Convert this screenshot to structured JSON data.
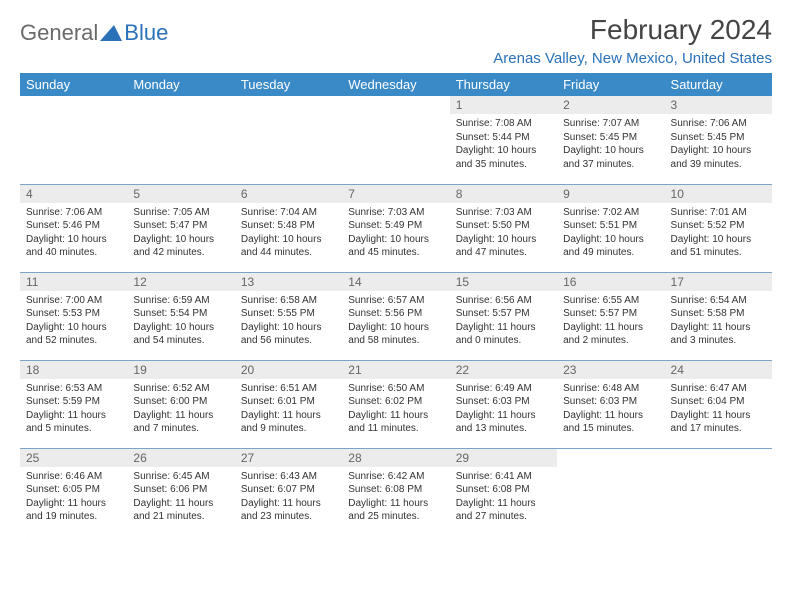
{
  "logo": {
    "general": "General",
    "blue": "Blue"
  },
  "title": "February 2024",
  "location": "Arenas Valley, New Mexico, United States",
  "colors": {
    "header_bg": "#3a8ac8",
    "header_text": "#ffffff",
    "daynum_bg": "#ececec",
    "daynum_text": "#666666",
    "border": "#7aa5c9",
    "accent": "#2a71b8"
  },
  "weekdays": [
    "Sunday",
    "Monday",
    "Tuesday",
    "Wednesday",
    "Thursday",
    "Friday",
    "Saturday"
  ],
  "weeks": [
    [
      null,
      null,
      null,
      null,
      {
        "n": "1",
        "sr": "Sunrise: 7:08 AM",
        "ss": "Sunset: 5:44 PM",
        "dl": "Daylight: 10 hours and 35 minutes."
      },
      {
        "n": "2",
        "sr": "Sunrise: 7:07 AM",
        "ss": "Sunset: 5:45 PM",
        "dl": "Daylight: 10 hours and 37 minutes."
      },
      {
        "n": "3",
        "sr": "Sunrise: 7:06 AM",
        "ss": "Sunset: 5:45 PM",
        "dl": "Daylight: 10 hours and 39 minutes."
      }
    ],
    [
      {
        "n": "4",
        "sr": "Sunrise: 7:06 AM",
        "ss": "Sunset: 5:46 PM",
        "dl": "Daylight: 10 hours and 40 minutes."
      },
      {
        "n": "5",
        "sr": "Sunrise: 7:05 AM",
        "ss": "Sunset: 5:47 PM",
        "dl": "Daylight: 10 hours and 42 minutes."
      },
      {
        "n": "6",
        "sr": "Sunrise: 7:04 AM",
        "ss": "Sunset: 5:48 PM",
        "dl": "Daylight: 10 hours and 44 minutes."
      },
      {
        "n": "7",
        "sr": "Sunrise: 7:03 AM",
        "ss": "Sunset: 5:49 PM",
        "dl": "Daylight: 10 hours and 45 minutes."
      },
      {
        "n": "8",
        "sr": "Sunrise: 7:03 AM",
        "ss": "Sunset: 5:50 PM",
        "dl": "Daylight: 10 hours and 47 minutes."
      },
      {
        "n": "9",
        "sr": "Sunrise: 7:02 AM",
        "ss": "Sunset: 5:51 PM",
        "dl": "Daylight: 10 hours and 49 minutes."
      },
      {
        "n": "10",
        "sr": "Sunrise: 7:01 AM",
        "ss": "Sunset: 5:52 PM",
        "dl": "Daylight: 10 hours and 51 minutes."
      }
    ],
    [
      {
        "n": "11",
        "sr": "Sunrise: 7:00 AM",
        "ss": "Sunset: 5:53 PM",
        "dl": "Daylight: 10 hours and 52 minutes."
      },
      {
        "n": "12",
        "sr": "Sunrise: 6:59 AM",
        "ss": "Sunset: 5:54 PM",
        "dl": "Daylight: 10 hours and 54 minutes."
      },
      {
        "n": "13",
        "sr": "Sunrise: 6:58 AM",
        "ss": "Sunset: 5:55 PM",
        "dl": "Daylight: 10 hours and 56 minutes."
      },
      {
        "n": "14",
        "sr": "Sunrise: 6:57 AM",
        "ss": "Sunset: 5:56 PM",
        "dl": "Daylight: 10 hours and 58 minutes."
      },
      {
        "n": "15",
        "sr": "Sunrise: 6:56 AM",
        "ss": "Sunset: 5:57 PM",
        "dl": "Daylight: 11 hours and 0 minutes."
      },
      {
        "n": "16",
        "sr": "Sunrise: 6:55 AM",
        "ss": "Sunset: 5:57 PM",
        "dl": "Daylight: 11 hours and 2 minutes."
      },
      {
        "n": "17",
        "sr": "Sunrise: 6:54 AM",
        "ss": "Sunset: 5:58 PM",
        "dl": "Daylight: 11 hours and 3 minutes."
      }
    ],
    [
      {
        "n": "18",
        "sr": "Sunrise: 6:53 AM",
        "ss": "Sunset: 5:59 PM",
        "dl": "Daylight: 11 hours and 5 minutes."
      },
      {
        "n": "19",
        "sr": "Sunrise: 6:52 AM",
        "ss": "Sunset: 6:00 PM",
        "dl": "Daylight: 11 hours and 7 minutes."
      },
      {
        "n": "20",
        "sr": "Sunrise: 6:51 AM",
        "ss": "Sunset: 6:01 PM",
        "dl": "Daylight: 11 hours and 9 minutes."
      },
      {
        "n": "21",
        "sr": "Sunrise: 6:50 AM",
        "ss": "Sunset: 6:02 PM",
        "dl": "Daylight: 11 hours and 11 minutes."
      },
      {
        "n": "22",
        "sr": "Sunrise: 6:49 AM",
        "ss": "Sunset: 6:03 PM",
        "dl": "Daylight: 11 hours and 13 minutes."
      },
      {
        "n": "23",
        "sr": "Sunrise: 6:48 AM",
        "ss": "Sunset: 6:03 PM",
        "dl": "Daylight: 11 hours and 15 minutes."
      },
      {
        "n": "24",
        "sr": "Sunrise: 6:47 AM",
        "ss": "Sunset: 6:04 PM",
        "dl": "Daylight: 11 hours and 17 minutes."
      }
    ],
    [
      {
        "n": "25",
        "sr": "Sunrise: 6:46 AM",
        "ss": "Sunset: 6:05 PM",
        "dl": "Daylight: 11 hours and 19 minutes."
      },
      {
        "n": "26",
        "sr": "Sunrise: 6:45 AM",
        "ss": "Sunset: 6:06 PM",
        "dl": "Daylight: 11 hours and 21 minutes."
      },
      {
        "n": "27",
        "sr": "Sunrise: 6:43 AM",
        "ss": "Sunset: 6:07 PM",
        "dl": "Daylight: 11 hours and 23 minutes."
      },
      {
        "n": "28",
        "sr": "Sunrise: 6:42 AM",
        "ss": "Sunset: 6:08 PM",
        "dl": "Daylight: 11 hours and 25 minutes."
      },
      {
        "n": "29",
        "sr": "Sunrise: 6:41 AM",
        "ss": "Sunset: 6:08 PM",
        "dl": "Daylight: 11 hours and 27 minutes."
      },
      null,
      null
    ]
  ]
}
